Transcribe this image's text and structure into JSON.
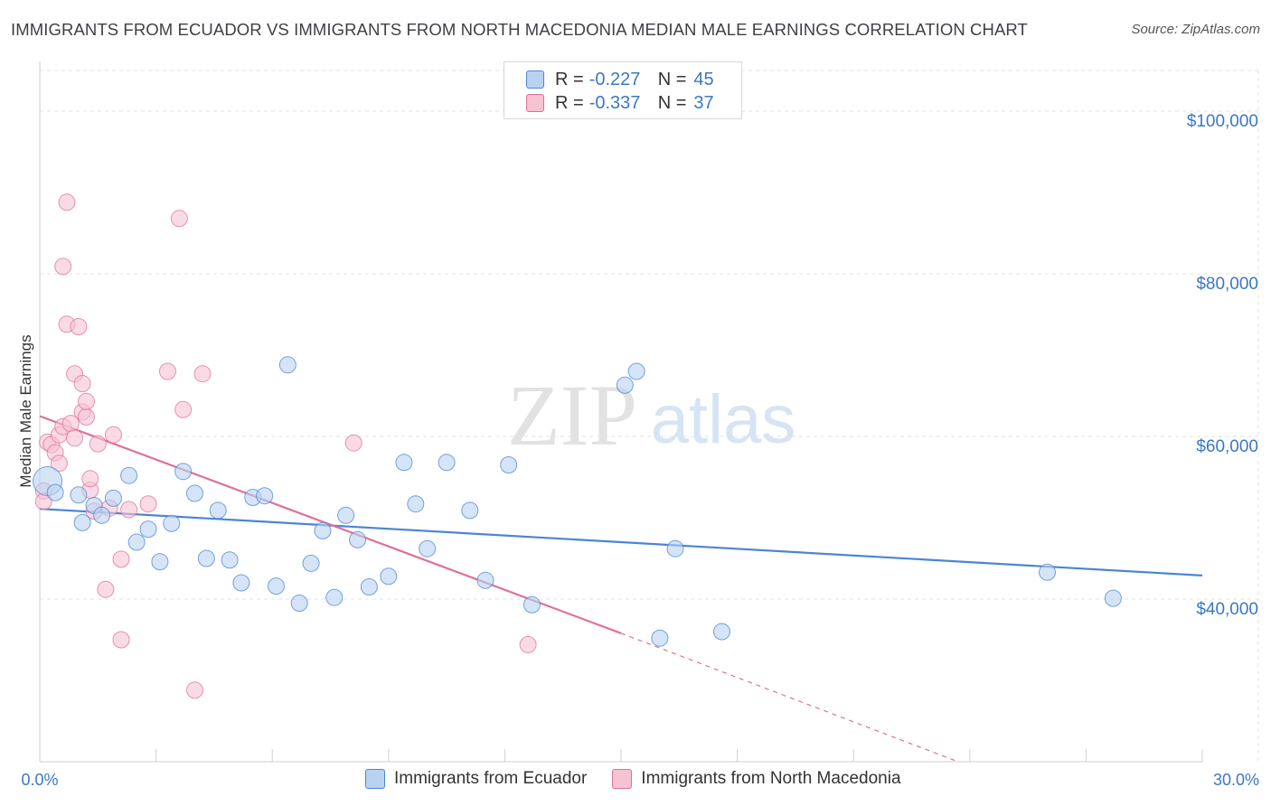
{
  "title": "IMMIGRANTS FROM ECUADOR VS IMMIGRANTS FROM NORTH MACEDONIA MEDIAN MALE EARNINGS CORRELATION CHART",
  "source": "Source: ZipAtlas.com",
  "watermark": {
    "zip": "ZIP",
    "atlas": "atlas"
  },
  "legend": {
    "r_label": "R =",
    "n_label": "N =",
    "series": [
      {
        "r": "-0.227",
        "n": "45"
      },
      {
        "r": "-0.337",
        "n": "37"
      }
    ]
  },
  "chart_data": {
    "type": "scatter",
    "title": "IMMIGRANTS FROM ECUADOR VS IMMIGRANTS FROM NORTH MACEDONIA MEDIAN MALE EARNINGS CORRELATION CHART",
    "xlabel": "",
    "ylabel": "Median Male Earnings",
    "xlim": [
      0,
      30
    ],
    "ylim": [
      20000,
      105000
    ],
    "x_tick_labels": [
      "0.0%",
      "30.0%"
    ],
    "y_ticks": [
      {
        "value": 40000,
        "label": "$40,000"
      },
      {
        "value": 60000,
        "label": "$60,000"
      },
      {
        "value": 80000,
        "label": "$80,000"
      },
      {
        "value": 100000,
        "label": "$100,000"
      }
    ],
    "grid": true,
    "series": [
      {
        "name": "Immigrants from Ecuador",
        "color": "#4a86d4",
        "fill": "#b9d2f2",
        "r": -0.227,
        "n": 45,
        "trend": {
          "x": [
            0,
            30
          ],
          "y": [
            51100,
            42900
          ],
          "dashed_extension": false
        },
        "points": [
          [
            0.2,
            54500
          ],
          [
            0.4,
            53100
          ],
          [
            1.0,
            52800
          ],
          [
            1.1,
            49400
          ],
          [
            1.4,
            51500
          ],
          [
            1.6,
            50300
          ],
          [
            1.9,
            52400
          ],
          [
            2.3,
            55200
          ],
          [
            2.5,
            47000
          ],
          [
            2.8,
            48600
          ],
          [
            3.1,
            44600
          ],
          [
            3.4,
            49300
          ],
          [
            3.7,
            55700
          ],
          [
            4.0,
            53000
          ],
          [
            4.3,
            45000
          ],
          [
            4.6,
            50900
          ],
          [
            4.9,
            44800
          ],
          [
            5.2,
            42000
          ],
          [
            5.5,
            52500
          ],
          [
            5.8,
            52700
          ],
          [
            6.1,
            41600
          ],
          [
            6.4,
            68800
          ],
          [
            6.7,
            39500
          ],
          [
            7.0,
            44400
          ],
          [
            7.3,
            48400
          ],
          [
            7.6,
            40200
          ],
          [
            7.9,
            50300
          ],
          [
            8.2,
            47300
          ],
          [
            8.5,
            41500
          ],
          [
            9.0,
            42800
          ],
          [
            9.4,
            56800
          ],
          [
            9.7,
            51700
          ],
          [
            10.0,
            46200
          ],
          [
            10.5,
            56800
          ],
          [
            11.1,
            50900
          ],
          [
            11.5,
            42300
          ],
          [
            12.1,
            56500
          ],
          [
            12.7,
            39300
          ],
          [
            15.1,
            66300
          ],
          [
            15.4,
            68000
          ],
          [
            16.0,
            35200
          ],
          [
            16.4,
            46200
          ],
          [
            17.6,
            36000
          ],
          [
            26.0,
            43300
          ],
          [
            27.7,
            40100
          ]
        ]
      },
      {
        "name": "Immigrants from North Macedonia",
        "color": "#e0709a",
        "fill": "#f6c3d3",
        "r": -0.337,
        "n": 37,
        "trend": {
          "x": [
            0,
            15
          ],
          "y": [
            62500,
            35800
          ],
          "dashed_extension": true,
          "dash_to": {
            "x": 23.7,
            "y": 20000
          }
        },
        "points": [
          [
            0.1,
            53300
          ],
          [
            0.2,
            59300
          ],
          [
            0.3,
            59000
          ],
          [
            0.4,
            58000
          ],
          [
            0.5,
            60200
          ],
          [
            0.5,
            56700
          ],
          [
            0.6,
            80900
          ],
          [
            0.6,
            61200
          ],
          [
            0.7,
            88800
          ],
          [
            0.7,
            73800
          ],
          [
            0.8,
            61600
          ],
          [
            0.9,
            67700
          ],
          [
            0.9,
            59800
          ],
          [
            1.0,
            73500
          ],
          [
            1.1,
            66500
          ],
          [
            1.1,
            63000
          ],
          [
            1.2,
            62400
          ],
          [
            1.2,
            64300
          ],
          [
            1.3,
            53400
          ],
          [
            1.3,
            54800
          ],
          [
            1.4,
            50800
          ],
          [
            1.5,
            59100
          ],
          [
            1.7,
            41200
          ],
          [
            1.8,
            51200
          ],
          [
            1.9,
            60200
          ],
          [
            2.1,
            44900
          ],
          [
            2.1,
            35000
          ],
          [
            2.3,
            51000
          ],
          [
            2.8,
            51700
          ],
          [
            3.3,
            68000
          ],
          [
            3.6,
            86800
          ],
          [
            3.7,
            63300
          ],
          [
            4.0,
            28800
          ],
          [
            4.2,
            67700
          ],
          [
            8.1,
            59200
          ],
          [
            12.6,
            34400
          ],
          [
            0.1,
            52000
          ]
        ]
      }
    ]
  }
}
